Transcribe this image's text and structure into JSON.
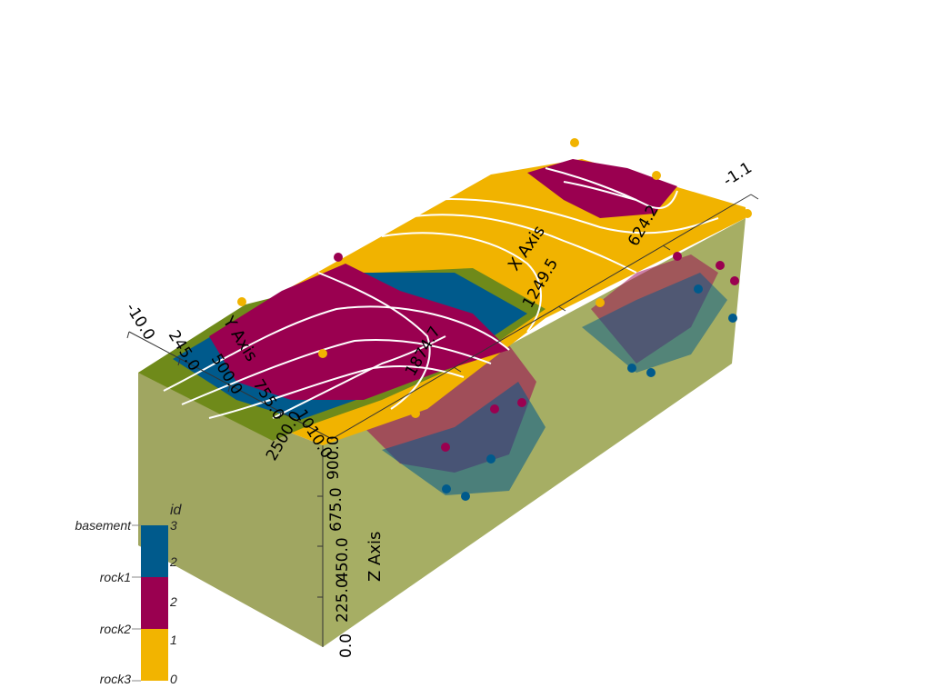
{
  "colors": {
    "basement": "#005a8c",
    "rock1": "#9a0050",
    "rock2": "#9a0050",
    "rock3": "#f2b400",
    "yellow": "#f1b300",
    "green": "#6f8a1a",
    "block": "#9aa34f",
    "contour": "#ffffff"
  },
  "axes": {
    "x_title": "X Axis",
    "y_title": "Y Axis",
    "z_title": "Z Axis",
    "x_ticks": [
      "-1.1",
      "624.2",
      "1249.5",
      "1874.7",
      "2500.0"
    ],
    "y_ticks": [
      "-10.0",
      "245.0",
      "500.0",
      "755.0",
      "1010.0"
    ],
    "z_ticks": [
      "0.0",
      "225.0",
      "450.0",
      "675.0",
      "900.0"
    ]
  },
  "legend": {
    "title": "id",
    "labels": [
      "basement",
      "rock1",
      "rock2",
      "rock3"
    ],
    "ticks": [
      "3",
      "2",
      "2",
      "1",
      "0"
    ]
  }
}
